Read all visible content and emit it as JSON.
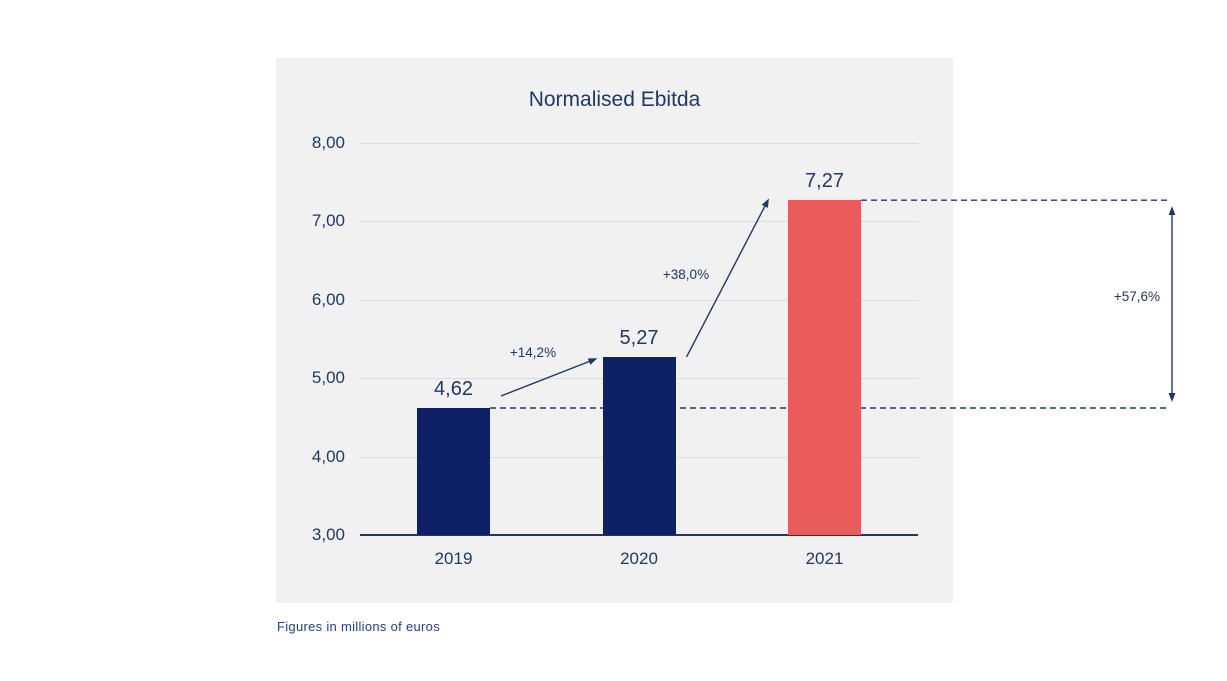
{
  "chart_data": {
    "type": "bar",
    "title": "Normalised Ebitda",
    "categories": [
      "2019",
      "2020",
      "2021"
    ],
    "values": [
      4.62,
      5.27,
      7.27
    ],
    "value_labels": [
      "4,62",
      "5,27",
      "7,27"
    ],
    "series": [
      {
        "name": "Normalised Ebitda",
        "values": [
          4.62,
          5.27,
          7.27
        ]
      }
    ],
    "bar_colors": [
      "#0e2166",
      "#0e2166",
      "#ea5b5b"
    ],
    "ylim": [
      3,
      8
    ],
    "ytick_labels": [
      "3,00",
      "4,00",
      "5,00",
      "6,00",
      "7,00",
      "8,00"
    ],
    "grid": true,
    "legend": "none",
    "annotations": [
      {
        "label": "+14,2%",
        "kind": "growth-arrow",
        "from": "2019",
        "to": "2020"
      },
      {
        "label": "+38,0%",
        "kind": "growth-arrow",
        "from": "2020",
        "to": "2021"
      },
      {
        "label": "+57,6%",
        "kind": "total-span",
        "from": "2019",
        "to": "2021"
      }
    ]
  },
  "footnote": "Figures in millions of euros",
  "colors": {
    "navy_bar": "#0e2166",
    "red_bar": "#ea5b5b",
    "text": "#1f3864",
    "grid": "#dcdcdc",
    "panel_bg": "#f1f1f1",
    "annotation_line": "#1f3864"
  }
}
